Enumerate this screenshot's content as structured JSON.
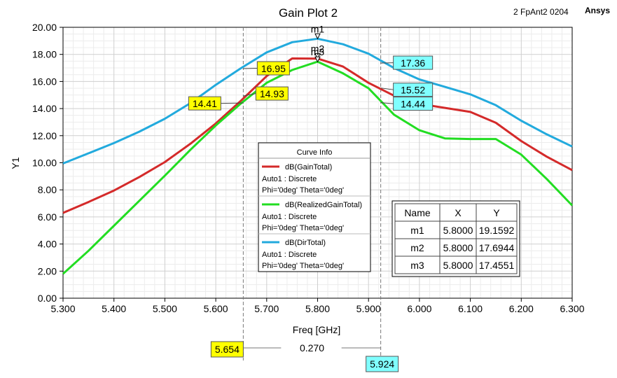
{
  "header": {
    "title": "Gain Plot 2",
    "design_name": "2 FpAnt2 0204",
    "brand": "Ansys"
  },
  "chart_data": {
    "type": "line",
    "xlabel": "Freq [GHz]",
    "ylabel": "Y1",
    "xlim": [
      5.3,
      6.3
    ],
    "ylim": [
      0,
      20
    ],
    "x_ticks": [
      "5.300",
      "5.400",
      "5.500",
      "5.600",
      "5.700",
      "5.800",
      "5.900",
      "6.000",
      "6.100",
      "6.200",
      "6.300"
    ],
    "y_ticks": [
      "0.00",
      "2.00",
      "4.00",
      "6.00",
      "8.00",
      "10.00",
      "12.00",
      "14.00",
      "16.00",
      "18.00",
      "20.00"
    ],
    "grid": true,
    "series": [
      {
        "name": "dB(GainTotal)",
        "color": "#d42a2a",
        "x": [
          5.3,
          5.35,
          5.4,
          5.45,
          5.5,
          5.55,
          5.6,
          5.65,
          5.7,
          5.75,
          5.8,
          5.85,
          5.9,
          5.95,
          6.0,
          6.05,
          6.1,
          6.15,
          6.2,
          6.25,
          6.3
        ],
        "y": [
          6.3,
          7.1,
          7.95,
          8.95,
          10.05,
          11.4,
          12.9,
          14.6,
          16.4,
          17.7,
          17.69,
          17.1,
          15.9,
          14.95,
          14.35,
          14.05,
          13.75,
          12.95,
          11.6,
          10.45,
          9.45
        ]
      },
      {
        "name": "dB(RealizedGainTotal)",
        "color": "#22dd22",
        "x": [
          5.3,
          5.35,
          5.4,
          5.45,
          5.5,
          5.55,
          5.6,
          5.65,
          5.7,
          5.75,
          5.8,
          5.85,
          5.9,
          5.95,
          6.0,
          6.05,
          6.1,
          6.15,
          6.2,
          6.25,
          6.3
        ],
        "y": [
          1.8,
          3.5,
          5.35,
          7.2,
          9.05,
          10.95,
          12.75,
          14.4,
          15.9,
          16.85,
          17.46,
          16.6,
          15.5,
          13.55,
          12.4,
          11.8,
          11.75,
          11.75,
          10.6,
          8.8,
          6.85
        ]
      },
      {
        "name": "dB(DirTotal)",
        "color": "#22aadd",
        "x": [
          5.3,
          5.35,
          5.4,
          5.45,
          5.5,
          5.55,
          5.6,
          5.65,
          5.7,
          5.75,
          5.8,
          5.85,
          5.9,
          5.95,
          6.0,
          6.05,
          6.1,
          6.15,
          6.2,
          6.25,
          6.3
        ],
        "y": [
          9.95,
          10.7,
          11.45,
          12.3,
          13.25,
          14.4,
          15.75,
          17.0,
          18.15,
          18.9,
          19.16,
          18.75,
          18.05,
          17.0,
          16.15,
          15.6,
          15.05,
          14.25,
          13.1,
          12.1,
          11.2
        ]
      }
    ],
    "legend": {
      "title": "Curve Info",
      "placement": "center",
      "entries": [
        {
          "name": "dB(GainTotal)",
          "line1": "Auto1 : Discrete",
          "line2": "Phi='0deg' Theta='0deg'",
          "color": "#d42a2a"
        },
        {
          "name": "dB(RealizedGainTotal)",
          "line1": "Auto1 : Discrete",
          "line2": "Phi='0deg' Theta='0deg'",
          "color": "#22dd22"
        },
        {
          "name": "dB(DirTotal)",
          "line1": "Auto1 : Discrete",
          "line2": "Phi='0deg' Theta='0deg'",
          "color": "#22aadd"
        }
      ]
    },
    "markers": [
      {
        "name": "m1",
        "x": 5.8,
        "y": 19.1592
      },
      {
        "name": "m2",
        "x": 5.8,
        "y": 17.6944
      },
      {
        "name": "m3",
        "x": 5.8,
        "y": 17.4551
      }
    ],
    "marker_table": {
      "headers": [
        "Name",
        "X",
        "Y"
      ],
      "rows": [
        [
          "m1",
          "5.8000",
          "19.1592"
        ],
        [
          "m2",
          "5.8000",
          "17.6944"
        ],
        [
          "m3",
          "5.8000",
          "17.4551"
        ]
      ]
    },
    "cursors": [
      {
        "x": 5.654,
        "label": "5.654",
        "color": "#ffff00"
      },
      {
        "x": 5.924,
        "label": "5.924",
        "color": "#80ffff"
      }
    ],
    "cursor_delta": "0.270",
    "cursor_values": [
      {
        "value": "16.95",
        "x": 5.654,
        "y": 16.95,
        "color": "#ffff00"
      },
      {
        "value": "14.93",
        "x": 5.654,
        "y": 14.93,
        "color": "#ffff00"
      },
      {
        "value": "14.41",
        "x": 5.654,
        "y": 14.41,
        "color": "#ffff00"
      },
      {
        "value": "17.36",
        "x": 5.924,
        "y": 17.36,
        "color": "#80ffff"
      },
      {
        "value": "15.52",
        "x": 5.924,
        "y": 15.52,
        "color": "#80ffff"
      },
      {
        "value": "14.44",
        "x": 5.924,
        "y": 14.44,
        "color": "#80ffff"
      }
    ]
  }
}
